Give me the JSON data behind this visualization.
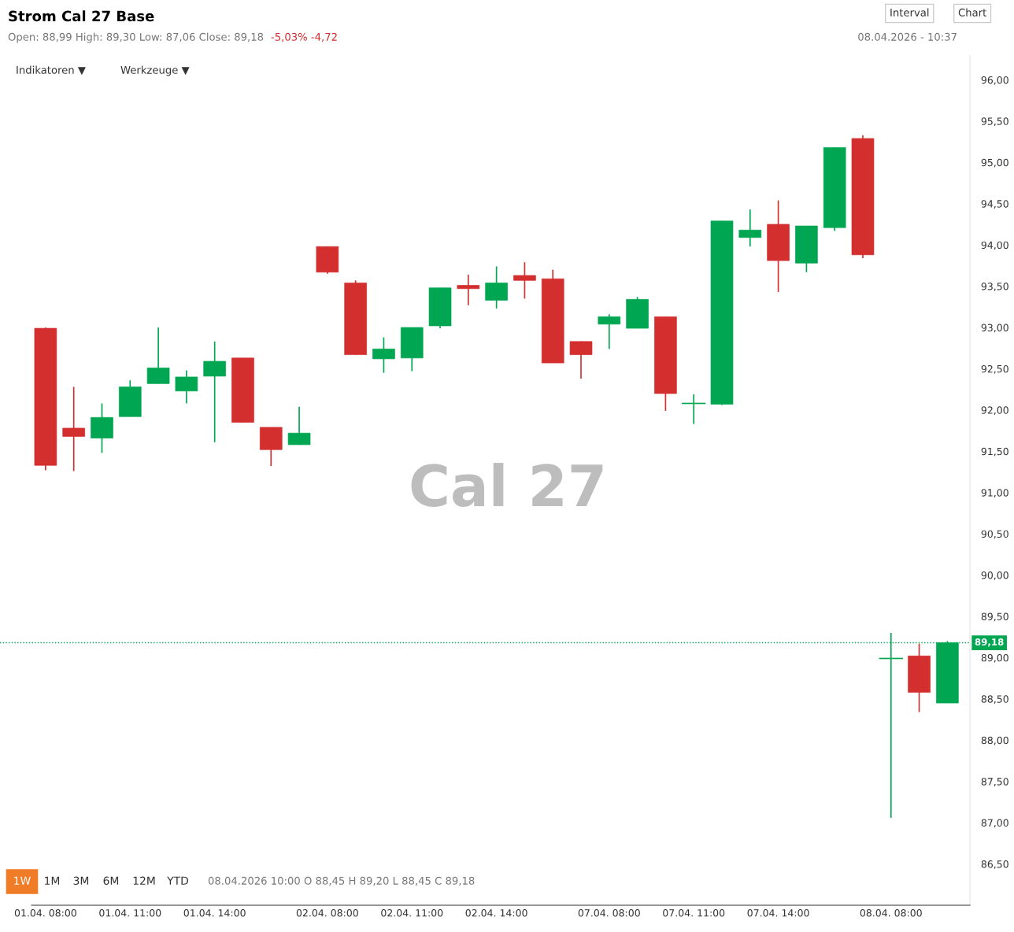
{
  "chart_data": {
    "type": "candlestick",
    "title": "Strom Cal 27 Base",
    "subtitle": "Open: 88,99 High: 89,30 Low: 87,06 Close: 89,18",
    "categories": [
      "01.04. 08:00",
      null,
      null,
      "01.04. 11:00",
      null,
      null,
      "01.04. 14:00",
      null,
      null,
      null,
      "02.04. 08:00",
      null,
      null,
      "02.04. 11:00",
      null,
      null,
      "02.04. 14:00",
      null,
      null,
      null,
      "07.04. 08:00",
      null,
      null,
      "07.04. 11:00",
      null,
      null,
      "07.04. 14:00",
      null,
      null,
      null,
      "08.04. 08:00",
      null,
      null
    ],
    "ohlc": [
      [
        92.99,
        93.0,
        91.27,
        91.33
      ],
      [
        91.78,
        92.28,
        91.26,
        91.68
      ],
      [
        91.66,
        92.08,
        91.48,
        91.91
      ],
      [
        91.92,
        92.36,
        91.92,
        92.28
      ],
      [
        92.32,
        93.0,
        92.32,
        92.51
      ],
      [
        92.23,
        92.48,
        92.08,
        92.4
      ],
      [
        92.41,
        92.83,
        91.61,
        92.59
      ],
      [
        92.63,
        92.63,
        91.85,
        91.85
      ],
      [
        91.79,
        91.79,
        91.32,
        91.52
      ],
      [
        91.58,
        92.04,
        91.58,
        91.72
      ],
      [
        93.98,
        93.98,
        93.65,
        93.67
      ],
      [
        93.54,
        93.57,
        92.67,
        92.67
      ],
      [
        92.62,
        92.88,
        92.45,
        92.74
      ],
      [
        92.63,
        93.0,
        92.47,
        93.0
      ],
      [
        93.02,
        93.48,
        92.99,
        93.48
      ],
      [
        93.51,
        93.64,
        93.27,
        93.47
      ],
      [
        93.33,
        93.74,
        93.23,
        93.54
      ],
      [
        93.63,
        93.79,
        93.35,
        93.57
      ],
      [
        93.59,
        93.7,
        92.57,
        92.57
      ],
      [
        92.83,
        92.83,
        92.38,
        92.67
      ],
      [
        93.04,
        93.16,
        92.74,
        93.13
      ],
      [
        92.99,
        93.37,
        92.99,
        93.34
      ],
      [
        93.13,
        93.13,
        91.99,
        92.2
      ],
      [
        92.08,
        92.19,
        91.83,
        92.08
      ],
      [
        92.07,
        94.29,
        92.06,
        94.29
      ],
      [
        94.09,
        94.43,
        93.98,
        94.18
      ],
      [
        94.25,
        94.54,
        93.43,
        93.81
      ],
      [
        93.78,
        94.23,
        93.67,
        94.23
      ],
      [
        94.21,
        95.18,
        94.17,
        95.18
      ],
      [
        95.29,
        95.33,
        93.84,
        93.88
      ],
      [
        88.99,
        89.3,
        87.06,
        88.99
      ],
      [
        89.02,
        89.17,
        88.34,
        88.58
      ],
      [
        88.45,
        89.2,
        88.45,
        89.18
      ]
    ],
    "colors": [
      "#d32f2f",
      "#d32f2f",
      "#00a651",
      "#00a651",
      "#00a651",
      "#00a651",
      "#00a651",
      "#d32f2f",
      "#d32f2f",
      "#00a651",
      "#d32f2f",
      "#d32f2f",
      "#00a651",
      "#00a651",
      "#00a651",
      "#d32f2f",
      "#00a651",
      "#d32f2f",
      "#d32f2f",
      "#d32f2f",
      "#00a651",
      "#00a651",
      "#d32f2f",
      "#00a651",
      "#00a651",
      "#00a651",
      "#d32f2f",
      "#00a651",
      "#00a651",
      "#d32f2f",
      "#00a651",
      "#d32f2f",
      "#00a651"
    ],
    "ylim": [
      86.0,
      96.3
    ],
    "yticks": [
      {
        "value": 86.5,
        "label": "86,50"
      },
      {
        "value": 87.0,
        "label": "87,00"
      },
      {
        "value": 87.5,
        "label": "87,50"
      },
      {
        "value": 88.0,
        "label": "88,00"
      },
      {
        "value": 88.5,
        "label": "88,50"
      },
      {
        "value": 89.0,
        "label": "89,00"
      },
      {
        "value": 89.5,
        "label": "89,50"
      },
      {
        "value": 90.0,
        "label": "90,00"
      },
      {
        "value": 90.5,
        "label": "90,50"
      },
      {
        "value": 91.0,
        "label": "91,00"
      },
      {
        "value": 91.5,
        "label": "91,50"
      },
      {
        "value": 92.0,
        "label": "92,00"
      },
      {
        "value": 92.5,
        "label": "92,50"
      },
      {
        "value": 93.0,
        "label": "93,00"
      },
      {
        "value": 93.5,
        "label": "93,50"
      },
      {
        "value": 94.0,
        "label": "94,00"
      },
      {
        "value": 94.5,
        "label": "94,50"
      },
      {
        "value": 95.0,
        "label": "95,00"
      },
      {
        "value": 95.5,
        "label": "95,50"
      },
      {
        "value": 96.0,
        "label": "96,00"
      }
    ],
    "ref_lines": [
      {
        "axis": "y",
        "value": 89.18,
        "label": "89,18",
        "color": "#00a651",
        "line_style": "dotted"
      }
    ],
    "grid": false,
    "annotations": [
      "-5,03% -4,72",
      "08.04.2026 - 10:37",
      "Indikatoren ▼",
      "Werkzeuge ▼",
      "Interval",
      "Chart",
      "Cal 27",
      "1W",
      "1M",
      "3M",
      "6M",
      "12M",
      "YTD",
      "08.04.2026 10:00 O 88,45 H 89,20 L 88,45 C 89,18"
    ]
  }
}
